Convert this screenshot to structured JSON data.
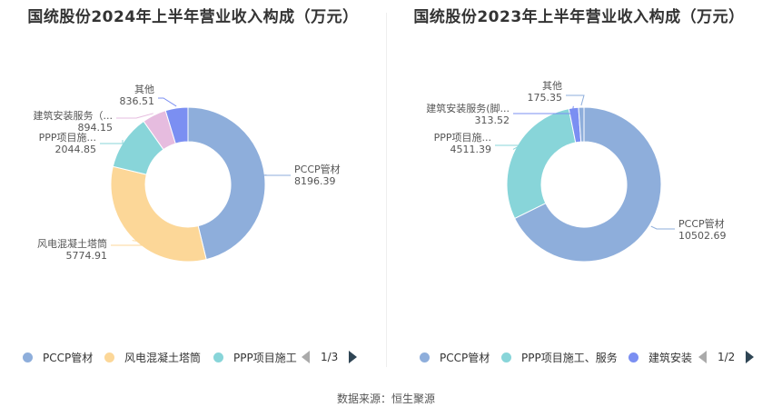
{
  "source": "数据来源：恒生聚源",
  "chart_data": [
    {
      "type": "pie",
      "title": "国统股份2024年上半年营业收入构成（万元）",
      "slices": [
        {
          "name": "PCCP管材",
          "label": "PCCP管材",
          "value": 8196.39,
          "value_label": "8196.39",
          "color": "#8eaedb"
        },
        {
          "name": "风电混凝土塔筒",
          "label": "风电混凝土塔筒",
          "value": 5774.91,
          "value_label": "5774.91",
          "color": "#fcd798"
        },
        {
          "name": "PPP项目施工、服务",
          "label": "PPP项目施...",
          "value": 2044.85,
          "value_label": "2044.85",
          "color": "#88d5d9"
        },
        {
          "name": "建筑安装服务（脚手架等）",
          "label": "建筑安装服务（...",
          "value": 894.15,
          "value_label": "894.15",
          "color": "#e6bcdf"
        },
        {
          "name": "其他",
          "label": "其他",
          "value": 836.51,
          "value_label": "836.51",
          "color": "#7b8ff2"
        }
      ],
      "legend": {
        "items": [
          {
            "label": "PCCP管材",
            "color": "#8eaedb"
          },
          {
            "label": "风电混凝土塔筒",
            "color": "#fcd798"
          },
          {
            "label": "PPP项目施工",
            "color": "#88d5d9"
          }
        ],
        "page": "1/3"
      }
    },
    {
      "type": "pie",
      "title": "国统股份2023年上半年营业收入构成（万元）",
      "slices": [
        {
          "name": "PCCP管材",
          "label": "PCCP管材",
          "value": 10502.69,
          "value_label": "10502.69",
          "color": "#8eaedb"
        },
        {
          "name": "PPP项目施工、服务",
          "label": "PPP项目施...",
          "value": 4511.39,
          "value_label": "4511.39",
          "color": "#88d5d9"
        },
        {
          "name": "建筑安装服务（脚手架等）",
          "label": "建筑安装服务(脚...",
          "value": 313.52,
          "value_label": "313.52",
          "color": "#7b8ff2"
        },
        {
          "name": "其他",
          "label": "其他",
          "value": 175.35,
          "value_label": "175.35",
          "color": "#8eaedb"
        }
      ],
      "legend": {
        "items": [
          {
            "label": "PCCP管材",
            "color": "#8eaedb"
          },
          {
            "label": "PPP项目施工、服务",
            "color": "#88d5d9"
          },
          {
            "label": "建筑安装",
            "color": "#7b8ff2"
          }
        ],
        "page": "1/2"
      }
    }
  ]
}
